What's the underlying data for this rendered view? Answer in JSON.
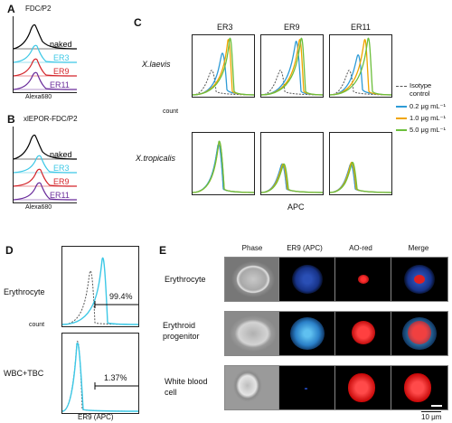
{
  "panels": {
    "A": {
      "letter": "A",
      "title": "FDC/P2",
      "xlabel": "Alexa680",
      "labels": [
        "naked",
        "ER3",
        "ER9",
        "ER11"
      ]
    },
    "B": {
      "letter": "B",
      "title": "xlEPOR-FDC/P2",
      "xlabel": "Alexa680",
      "labels": [
        "naked",
        "ER3",
        "ER9",
        "ER11"
      ]
    },
    "C": {
      "letter": "C",
      "columns": [
        "ER3",
        "ER9",
        "ER11"
      ],
      "rows": [
        "X.laevis",
        "X.tropicalis"
      ],
      "ylabel": "count",
      "xlabel": "APC",
      "legend": [
        {
          "label": "Isotype control",
          "color": "#555555",
          "style": "dashed"
        },
        {
          "label": "0.2 μg mL⁻¹",
          "color": "#2e9bd6",
          "style": "solid"
        },
        {
          "label": "1.0 μg mL⁻¹",
          "color": "#f0a500",
          "style": "solid"
        },
        {
          "label": "5.0 μg mL⁻¹",
          "color": "#6cbf3c",
          "style": "solid"
        }
      ]
    },
    "D": {
      "letter": "D",
      "rows": [
        "Erythrocyte",
        "WBC+TBC"
      ],
      "percents": [
        "99.4%",
        "1.37%"
      ],
      "ylabel": "count",
      "xlabel": "ER9 (APC)"
    },
    "E": {
      "letter": "E",
      "columns": [
        "Phase",
        "ER9 (APC)",
        "AO-red",
        "Merge"
      ],
      "rows": [
        "Erythrocyte",
        "Erythroid progenitor",
        "White blood cell"
      ],
      "scalebar": "10 μm"
    }
  },
  "colors": {
    "naked": "#000000",
    "ER3": "#3cc8e6",
    "ER9": "#d4252a",
    "ER11": "#6a2c9b",
    "iso": "#555555",
    "c02": "#2e9bd6",
    "c10": "#f0a500",
    "c50": "#6cbf3c"
  }
}
